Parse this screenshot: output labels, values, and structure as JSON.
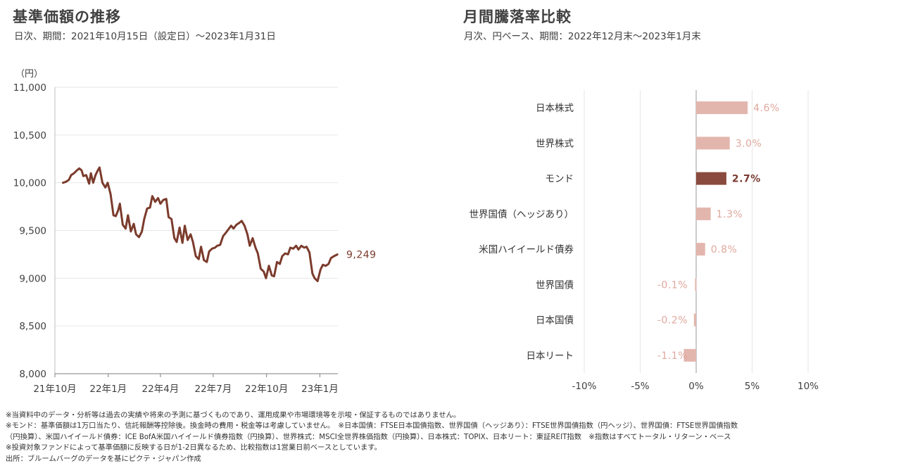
{
  "left_chart": {
    "title": "基準価額の推移",
    "subtitle": "日次、期間：2021年10月15日（設定日）～2023年1月31日"
  },
  "right_chart": {
    "title": "月間騰落率比較",
    "subtitle": "月次、円ベース、期間：2022年12月末～2023年1月末"
  },
  "notes": [
    "※当資料中のデータ・分析等は過去の実績や将来の予測に基づくものであり、運用成果や市場環境等を示唆・保証するものではありません。",
    "※モンド：基準価額は1万口当たり、信託報酬等控除後。換金時の費用・税金等は考慮していません。　※日本国債：FTSE日本国債指数、世界国債（ヘッジあり）：FTSE世界国債指数（円ヘッジ）、世界国債：FTSE世界国債指数",
    "（円換算）、米国ハイイールド債券：ICE BofA米国ハイイールド債券指数（円換算）、世界株式：MSCI全世界株価指数（円換算）、日本株式：TOPIX、日本リート：東証REIT指数　※指数はすべてトータル・リターン・ベース",
    "※投資対象ファンドによって基準価額に反映する日が1-2日異なるため、比較指数は1営業日前ベースとしています。",
    "出所：ブルームバーグのデータを基にピクテ・ジャパン作成"
  ],
  "colors": {
    "line": "#7b3b2c",
    "highlight_bar": "#8a4a3e",
    "bar": "#e3b6ad",
    "bar_label": "#e0a89e",
    "highlight_label": "#7a3a30",
    "grid": "#e6e6e6"
  },
  "chart_data": [
    {
      "type": "line",
      "ylabel": "（円）",
      "ylim": [
        8000,
        11000
      ],
      "yticks": [
        8000,
        8500,
        9000,
        9500,
        10000,
        10500,
        11000
      ],
      "ytick_labels": [
        "8,000",
        "8,500",
        "9,000",
        "9,500",
        "10,000",
        "10,500",
        "11,000"
      ],
      "xtick_labels": [
        "21年10月",
        "22年1月",
        "22年4月",
        "22年7月",
        "22年10月",
        "23年1月"
      ],
      "xtick_dates": [
        "2021-10-01",
        "2022-01-01",
        "2022-04-01",
        "2022-07-01",
        "2022-10-01",
        "2023-01-01"
      ],
      "xlim": [
        "2021-10-01",
        "2023-02-01"
      ],
      "grid": true,
      "end_label": "9,249",
      "series": [
        {
          "x": [
            "2021-10-15",
            "2021-10-20",
            "2021-10-25",
            "2021-10-29",
            "2021-11-03",
            "2021-11-08",
            "2021-11-12",
            "2021-11-16",
            "2021-11-19",
            "2021-11-24",
            "2021-11-29",
            "2021-12-02",
            "2021-12-06",
            "2021-12-10",
            "2021-12-14",
            "2021-12-17",
            "2021-12-22",
            "2021-12-27",
            "2021-12-31",
            "2022-01-05",
            "2022-01-10",
            "2022-01-14",
            "2022-01-18",
            "2022-01-21",
            "2022-01-26",
            "2022-01-31",
            "2022-02-04",
            "2022-02-09",
            "2022-02-14",
            "2022-02-18",
            "2022-02-23",
            "2022-02-28",
            "2022-03-04",
            "2022-03-09",
            "2022-03-14",
            "2022-03-18",
            "2022-03-23",
            "2022-03-28",
            "2022-04-01",
            "2022-04-06",
            "2022-04-11",
            "2022-04-15",
            "2022-04-20",
            "2022-04-25",
            "2022-04-29",
            "2022-05-04",
            "2022-05-09",
            "2022-05-13",
            "2022-05-18",
            "2022-05-23",
            "2022-05-27",
            "2022-06-01",
            "2022-06-06",
            "2022-06-10",
            "2022-06-15",
            "2022-06-20",
            "2022-06-24",
            "2022-06-29",
            "2022-07-04",
            "2022-07-08",
            "2022-07-13",
            "2022-07-18",
            "2022-07-22",
            "2022-07-27",
            "2022-08-01",
            "2022-08-05",
            "2022-08-10",
            "2022-08-15",
            "2022-08-19",
            "2022-08-24",
            "2022-08-29",
            "2022-09-02",
            "2022-09-07",
            "2022-09-12",
            "2022-09-16",
            "2022-09-21",
            "2022-09-26",
            "2022-09-30",
            "2022-10-05",
            "2022-10-10",
            "2022-10-14",
            "2022-10-19",
            "2022-10-24",
            "2022-10-28",
            "2022-11-02",
            "2022-11-07",
            "2022-11-11",
            "2022-11-16",
            "2022-11-21",
            "2022-11-25",
            "2022-11-30",
            "2022-12-05",
            "2022-12-09",
            "2022-12-14",
            "2022-12-19",
            "2022-12-23",
            "2022-12-28",
            "2023-01-02",
            "2023-01-06",
            "2023-01-11",
            "2023-01-16",
            "2023-01-20",
            "2023-01-25",
            "2023-01-31"
          ],
          "y": [
            10000,
            10010,
            10030,
            10080,
            10100,
            10130,
            10150,
            10130,
            10070,
            10080,
            9990,
            10100,
            10000,
            10080,
            10130,
            10160,
            10000,
            9950,
            10000,
            9880,
            9660,
            9650,
            9710,
            9780,
            9560,
            9520,
            9660,
            9490,
            9570,
            9460,
            9430,
            9490,
            9620,
            9730,
            9740,
            9860,
            9800,
            9840,
            9780,
            9820,
            9830,
            9640,
            9620,
            9420,
            9380,
            9530,
            9370,
            9550,
            9400,
            9460,
            9380,
            9230,
            9200,
            9330,
            9190,
            9170,
            9280,
            9310,
            9320,
            9340,
            9350,
            9440,
            9470,
            9510,
            9550,
            9520,
            9560,
            9580,
            9600,
            9550,
            9460,
            9340,
            9420,
            9320,
            9260,
            9100,
            9070,
            9000,
            9130,
            9030,
            9020,
            9170,
            9150,
            9230,
            9260,
            9250,
            9320,
            9310,
            9340,
            9300,
            9340,
            9320,
            9330,
            9270,
            9050,
            9000,
            8970,
            9090,
            9140,
            9130,
            9150,
            9210,
            9230,
            9249
          ]
        }
      ]
    },
    {
      "type": "bar",
      "orientation": "horizontal",
      "categories": [
        "日本株式",
        "世界株式",
        "モンド",
        "世界国債（ヘッジあり）",
        "米国ハイイールド債券",
        "世界国債",
        "日本国債",
        "日本リート"
      ],
      "values": [
        4.6,
        3.0,
        2.7,
        1.3,
        0.8,
        -0.1,
        -0.2,
        -1.1
      ],
      "value_labels": [
        "4.6%",
        "3.0%",
        "2.7%",
        "1.3%",
        "0.8%",
        "-0.1%",
        "-0.2%",
        "-1.1%"
      ],
      "highlight": "モンド",
      "xlim": [
        -10,
        10
      ],
      "xticks": [
        -10,
        -5,
        0,
        5,
        10
      ],
      "xtick_labels": [
        "-10%",
        "-5%",
        "0%",
        "5%",
        "10%"
      ],
      "grid": true
    }
  ]
}
